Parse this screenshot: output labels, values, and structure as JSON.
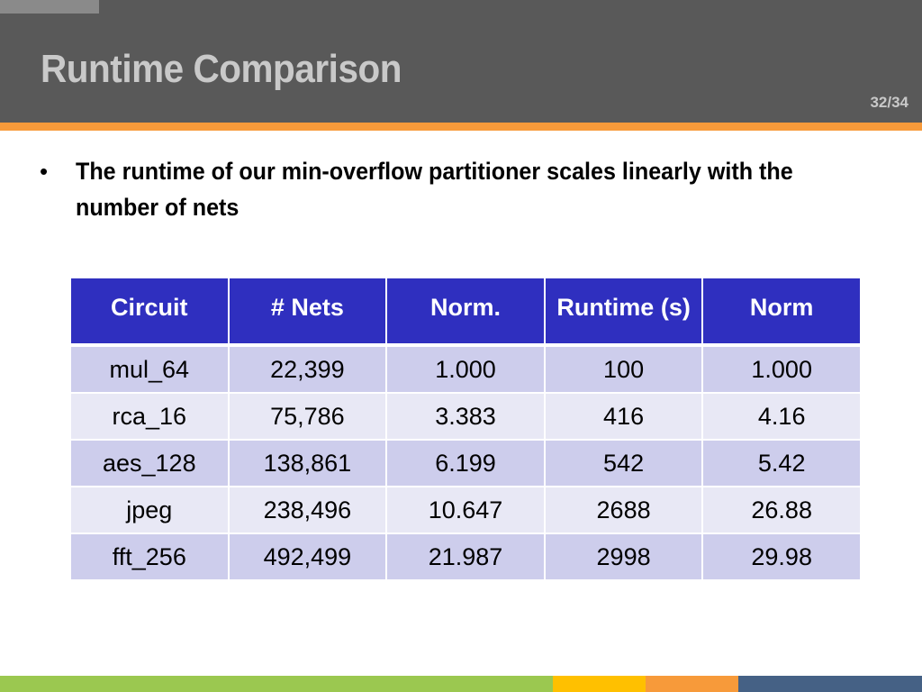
{
  "slide": {
    "title": "Runtime Comparison",
    "page_number": "32/34"
  },
  "bullets": [
    {
      "marker": "•",
      "text": "The runtime of our min-overflow partitioner scales linearly with the number of nets"
    }
  ],
  "table": {
    "headers": [
      "Circuit",
      "# Nets",
      "Norm.",
      "Runtime (s)",
      "Norm"
    ],
    "rows": [
      [
        "mul_64",
        "22,399",
        "1.000",
        "100",
        "1.000"
      ],
      [
        "rca_16",
        "75,786",
        "3.383",
        "416",
        "4.16"
      ],
      [
        "aes_128",
        "138,861",
        "6.199",
        "542",
        "5.42"
      ],
      [
        "jpeg",
        "238,496",
        "10.647",
        "2688",
        "26.88"
      ],
      [
        "fft_256",
        "492,499",
        "21.987",
        "2998",
        "29.98"
      ]
    ]
  },
  "colors": {
    "header_bg": "#595959",
    "title_text": "#c9c9c9",
    "accent_orange": "#f79a3a",
    "table_header_bg": "#2f2fbf",
    "row_odd_bg": "#cdcdec",
    "row_even_bg": "#e8e8f5",
    "footer_green": "#9bc850",
    "footer_yellow": "#ffc000",
    "footer_orange": "#f79a3a",
    "footer_blue": "#456185"
  }
}
